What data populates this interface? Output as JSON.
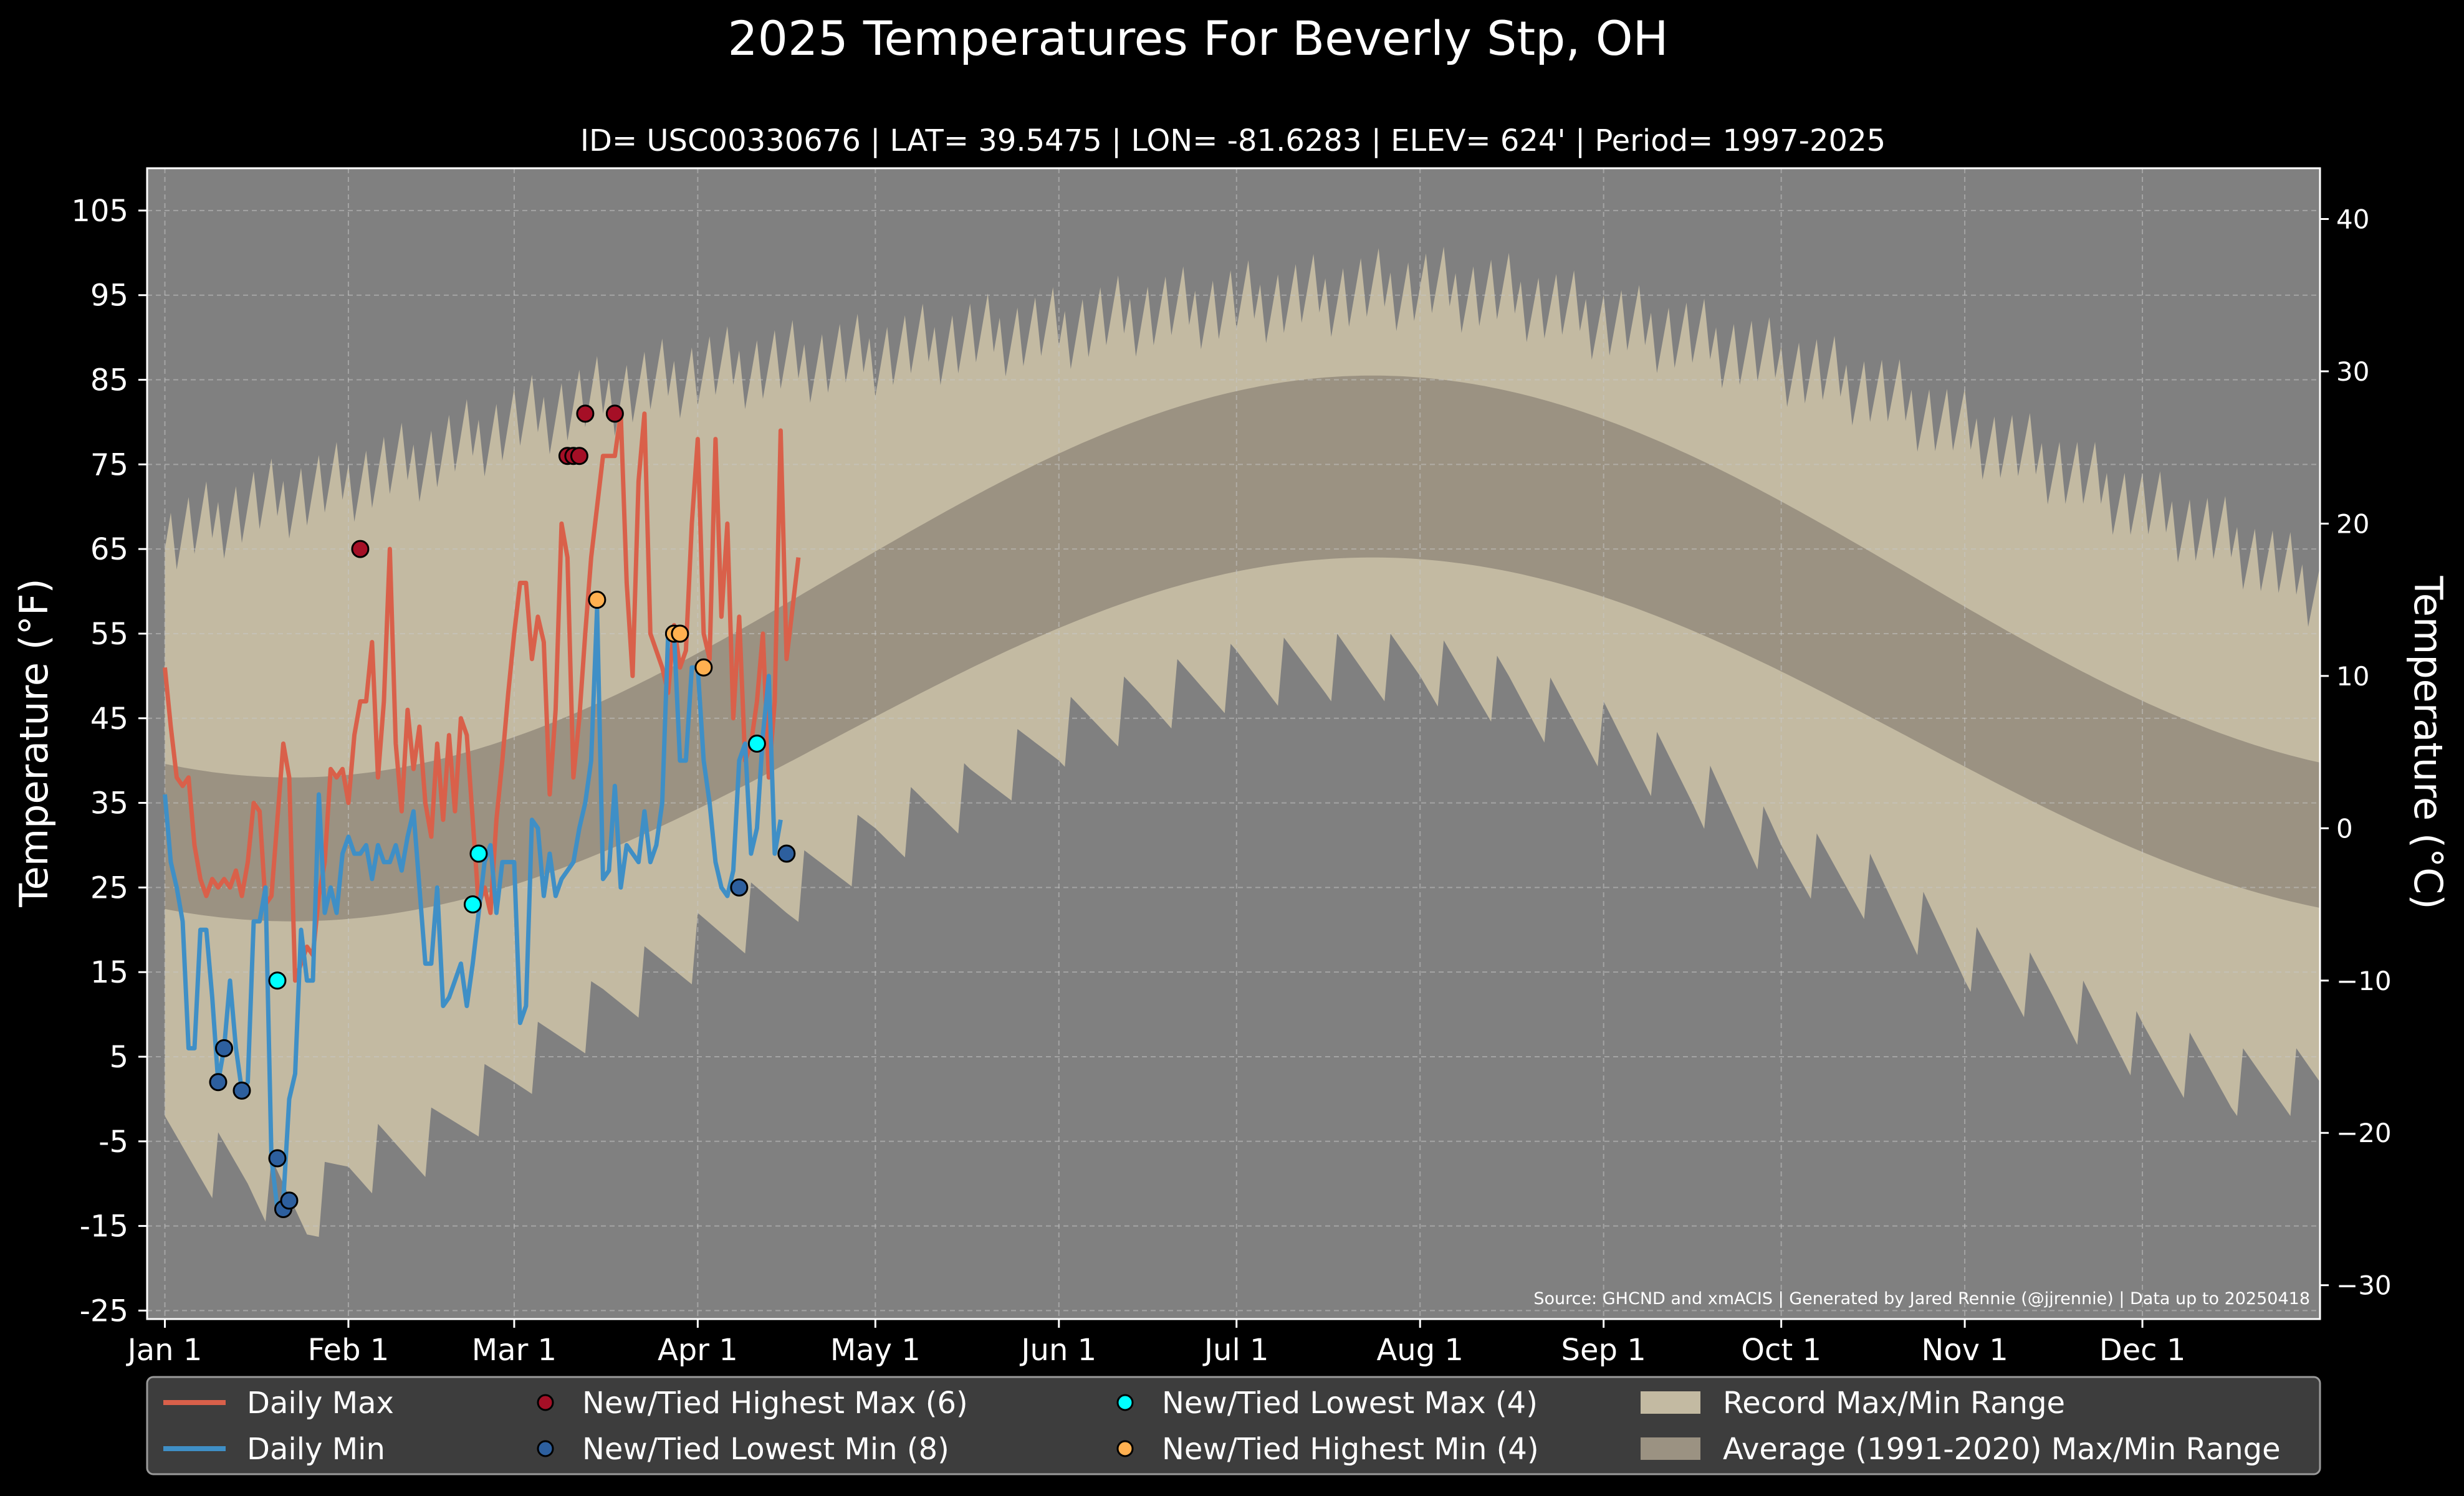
{
  "chart_data": {
    "type": "line",
    "title": "2025 Temperatures For Beverly Stp, OH",
    "subtitle": "ID= USC00330676 | LAT= 39.5475 | LON= -81.6283 | ELEV= 624' | Period= 1997-2025",
    "ylabel_left": "Temperature ($^\\circ$F)",
    "ylabel_left_text": "Temperature (°F)",
    "ylabel_right_text": "Temperature (°C)",
    "source": "Source: GHCND and xmACIS | Generated by Jared Rennie (@jjrennie) | Data up to 20250418",
    "x_axis": {
      "range_day_of_year": [
        -2,
        365
      ],
      "ticks": [
        {
          "day": 1,
          "label": "Jan 1"
        },
        {
          "day": 32,
          "label": "Feb 1"
        },
        {
          "day": 60,
          "label": "Mar 1"
        },
        {
          "day": 91,
          "label": "Apr 1"
        },
        {
          "day": 121,
          "label": "May 1"
        },
        {
          "day": 152,
          "label": "Jun 1"
        },
        {
          "day": 182,
          "label": "Jul 1"
        },
        {
          "day": 213,
          "label": "Aug 1"
        },
        {
          "day": 244,
          "label": "Sep 1"
        },
        {
          "day": 274,
          "label": "Oct 1"
        },
        {
          "day": 305,
          "label": "Nov 1"
        },
        {
          "day": 335,
          "label": "Dec 1"
        }
      ]
    },
    "y_axis_f": {
      "range": [
        -26,
        110
      ],
      "ticks": [
        -25,
        -15,
        -5,
        5,
        15,
        25,
        35,
        45,
        55,
        65,
        75,
        85,
        95,
        105
      ]
    },
    "y_axis_c": {
      "ticks": [
        -30,
        -20,
        -10,
        0,
        10,
        20,
        30,
        40
      ],
      "tick_labels": [
        "−30",
        "−20",
        "−10",
        "0",
        "10",
        "20",
        "30",
        "40"
      ]
    },
    "grid": true,
    "legend_position": "bottom",
    "colors": {
      "daily_max": "#d9604a",
      "daily_min": "#3f8fc6",
      "highest_max": "#a50f26",
      "lowest_min": "#2d5f9e",
      "lowest_max": "#00ffff",
      "highest_min": "#ffb050",
      "record_range": "#c3baa2",
      "average_range": "#9b9282",
      "plot_bg": "#808080"
    },
    "legend": [
      {
        "key": "daily_max",
        "label": "Daily Max",
        "kind": "line"
      },
      {
        "key": "daily_min",
        "label": "Daily Min",
        "kind": "line"
      },
      {
        "key": "highest_max",
        "label": "New/Tied Highest Max (6)",
        "kind": "dot"
      },
      {
        "key": "lowest_min",
        "label": "New/Tied Lowest Min (8)",
        "kind": "dot"
      },
      {
        "key": "lowest_max",
        "label": "New/Tied Lowest Max (4)",
        "kind": "dot"
      },
      {
        "key": "highest_min",
        "label": "New/Tied Highest Min (4)",
        "kind": "dot"
      },
      {
        "key": "record_range",
        "label": "Record Max/Min Range",
        "kind": "patch"
      },
      {
        "key": "average_range",
        "label": "Average (1991-2020) Max/Min Range",
        "kind": "patch"
      }
    ],
    "record_max_monthly_approx": [
      {
        "day": 1,
        "value": 66
      },
      {
        "day": 15,
        "value": 70
      },
      {
        "day": 32,
        "value": 73
      },
      {
        "day": 46,
        "value": 76
      },
      {
        "day": 60,
        "value": 80
      },
      {
        "day": 75,
        "value": 83
      },
      {
        "day": 91,
        "value": 86
      },
      {
        "day": 106,
        "value": 87
      },
      {
        "day": 121,
        "value": 88
      },
      {
        "day": 137,
        "value": 90
      },
      {
        "day": 152,
        "value": 91
      },
      {
        "day": 167,
        "value": 93
      },
      {
        "day": 182,
        "value": 94
      },
      {
        "day": 197,
        "value": 95
      },
      {
        "day": 213,
        "value": 96
      },
      {
        "day": 228,
        "value": 95
      },
      {
        "day": 244,
        "value": 92
      },
      {
        "day": 259,
        "value": 90
      },
      {
        "day": 274,
        "value": 87
      },
      {
        "day": 289,
        "value": 84
      },
      {
        "day": 305,
        "value": 79
      },
      {
        "day": 320,
        "value": 75
      },
      {
        "day": 335,
        "value": 70
      },
      {
        "day": 350,
        "value": 66
      },
      {
        "day": 365,
        "value": 60
      }
    ],
    "record_min_monthly_approx": [
      {
        "day": 1,
        "value": -6
      },
      {
        "day": 15,
        "value": -9
      },
      {
        "day": 25,
        "value": -14
      },
      {
        "day": 32,
        "value": -8
      },
      {
        "day": 46,
        "value": -5
      },
      {
        "day": 60,
        "value": 3
      },
      {
        "day": 75,
        "value": 11
      },
      {
        "day": 91,
        "value": 18
      },
      {
        "day": 106,
        "value": 24
      },
      {
        "day": 121,
        "value": 31
      },
      {
        "day": 137,
        "value": 36
      },
      {
        "day": 152,
        "value": 43
      },
      {
        "day": 167,
        "value": 47
      },
      {
        "day": 182,
        "value": 50
      },
      {
        "day": 197,
        "value": 51
      },
      {
        "day": 213,
        "value": 51
      },
      {
        "day": 228,
        "value": 48
      },
      {
        "day": 244,
        "value": 43
      },
      {
        "day": 259,
        "value": 37
      },
      {
        "day": 274,
        "value": 29
      },
      {
        "day": 289,
        "value": 25
      },
      {
        "day": 305,
        "value": 17
      },
      {
        "day": 320,
        "value": 12
      },
      {
        "day": 335,
        "value": 6
      },
      {
        "day": 350,
        "value": 2
      },
      {
        "day": 365,
        "value": 2
      }
    ],
    "average_max_annual": {
      "min": 38,
      "max": 85.5,
      "peak_day": 205
    },
    "average_min_annual": {
      "min": 21,
      "max": 64,
      "peak_day": 205
    },
    "daily_max": [
      {
        "day": 1,
        "value": 51
      },
      {
        "day": 2,
        "value": 44
      },
      {
        "day": 3,
        "value": 38
      },
      {
        "day": 4,
        "value": 37
      },
      {
        "day": 5,
        "value": 38
      },
      {
        "day": 6,
        "value": 30
      },
      {
        "day": 7,
        "value": 26
      },
      {
        "day": 8,
        "value": 24
      },
      {
        "day": 9,
        "value": 26
      },
      {
        "day": 10,
        "value": 25
      },
      {
        "day": 11,
        "value": 26
      },
      {
        "day": 12,
        "value": 25
      },
      {
        "day": 13,
        "value": 27
      },
      {
        "day": 14,
        "value": 24
      },
      {
        "day": 15,
        "value": 28
      },
      {
        "day": 16,
        "value": 35
      },
      {
        "day": 17,
        "value": 34
      },
      {
        "day": 18,
        "value": 23
      },
      {
        "day": 19,
        "value": 24
      },
      {
        "day": 20,
        "value": 33
      },
      {
        "day": 21,
        "value": 42
      },
      {
        "day": 22,
        "value": 38
      },
      {
        "day": 23,
        "value": 14
      },
      {
        "day": 24,
        "value": 16
      },
      {
        "day": 25,
        "value": 18
      },
      {
        "day": 26,
        "value": 17
      },
      {
        "day": 27,
        "value": 24
      },
      {
        "day": 28,
        "value": 28
      },
      {
        "day": 29,
        "value": 39
      },
      {
        "day": 30,
        "value": 38
      },
      {
        "day": 31,
        "value": 39
      },
      {
        "day": 32,
        "value": 35
      },
      {
        "day": 33,
        "value": 43
      },
      {
        "day": 34,
        "value": 47
      },
      {
        "day": 35,
        "value": 47
      },
      {
        "day": 36,
        "value": 54
      },
      {
        "day": 37,
        "value": 38
      },
      {
        "day": 38,
        "value": 47
      },
      {
        "day": 39,
        "value": 65
      },
      {
        "day": 40,
        "value": 42
      },
      {
        "day": 41,
        "value": 34
      },
      {
        "day": 42,
        "value": 46
      },
      {
        "day": 43,
        "value": 39
      },
      {
        "day": 44,
        "value": 44
      },
      {
        "day": 45,
        "value": 35
      },
      {
        "day": 46,
        "value": 31
      },
      {
        "day": 47,
        "value": 42
      },
      {
        "day": 48,
        "value": 33
      },
      {
        "day": 49,
        "value": 43
      },
      {
        "day": 50,
        "value": 34
      },
      {
        "day": 51,
        "value": 45
      },
      {
        "day": 52,
        "value": 43
      },
      {
        "day": 53,
        "value": 33
      },
      {
        "day": 54,
        "value": 23
      },
      {
        "day": 55,
        "value": 25
      },
      {
        "day": 56,
        "value": 22
      },
      {
        "day": 57,
        "value": 33
      },
      {
        "day": 58,
        "value": 40
      },
      {
        "day": 59,
        "value": 48
      },
      {
        "day": 60,
        "value": 55
      },
      {
        "day": 61,
        "value": 61
      },
      {
        "day": 62,
        "value": 61
      },
      {
        "day": 63,
        "value": 52
      },
      {
        "day": 64,
        "value": 57
      },
      {
        "day": 65,
        "value": 54
      },
      {
        "day": 66,
        "value": 36
      },
      {
        "day": 67,
        "value": 46
      },
      {
        "day": 68,
        "value": 68
      },
      {
        "day": 69,
        "value": 64
      },
      {
        "day": 70,
        "value": 38
      },
      {
        "day": 71,
        "value": 45
      },
      {
        "day": 72,
        "value": 55
      },
      {
        "day": 73,
        "value": 64
      },
      {
        "day": 74,
        "value": 70
      },
      {
        "day": 75,
        "value": 76
      },
      {
        "day": 76,
        "value": 76
      },
      {
        "day": 77,
        "value": 76
      },
      {
        "day": 78,
        "value": 81
      },
      {
        "day": 79,
        "value": 61
      },
      {
        "day": 80,
        "value": 50
      },
      {
        "day": 81,
        "value": 73
      },
      {
        "day": 82,
        "value": 81
      },
      {
        "day": 83,
        "value": 55
      },
      {
        "day": 84,
        "value": 53
      },
      {
        "day": 85,
        "value": 51
      },
      {
        "day": 86,
        "value": 48
      },
      {
        "day": 87,
        "value": 56
      },
      {
        "day": 88,
        "value": 51
      },
      {
        "day": 89,
        "value": 53
      },
      {
        "day": 90,
        "value": 68
      },
      {
        "day": 91,
        "value": 78
      },
      {
        "day": 92,
        "value": 55
      },
      {
        "day": 93,
        "value": 52
      },
      {
        "day": 94,
        "value": 78
      },
      {
        "day": 95,
        "value": 57
      },
      {
        "day": 96,
        "value": 68
      },
      {
        "day": 97,
        "value": 45
      },
      {
        "day": 98,
        "value": 57
      },
      {
        "day": 99,
        "value": 40
      },
      {
        "day": 100,
        "value": 42
      },
      {
        "day": 101,
        "value": 47
      },
      {
        "day": 102,
        "value": 55
      },
      {
        "day": 103,
        "value": 38
      },
      {
        "day": 104,
        "value": 47
      },
      {
        "day": 105,
        "value": 79
      },
      {
        "day": 106,
        "value": 52
      },
      {
        "day": 107,
        "value": 58
      },
      {
        "day": 108,
        "value": 64
      }
    ],
    "daily_min": [
      {
        "day": 1,
        "value": 36
      },
      {
        "day": 2,
        "value": 28
      },
      {
        "day": 3,
        "value": 25
      },
      {
        "day": 4,
        "value": 21
      },
      {
        "day": 5,
        "value": 6
      },
      {
        "day": 6,
        "value": 6
      },
      {
        "day": 7,
        "value": 20
      },
      {
        "day": 8,
        "value": 20
      },
      {
        "day": 9,
        "value": 12
      },
      {
        "day": 10,
        "value": 2
      },
      {
        "day": 11,
        "value": 6
      },
      {
        "day": 12,
        "value": 14
      },
      {
        "day": 13,
        "value": 6
      },
      {
        "day": 14,
        "value": 1
      },
      {
        "day": 15,
        "value": 2
      },
      {
        "day": 16,
        "value": 21
      },
      {
        "day": 17,
        "value": 21
      },
      {
        "day": 18,
        "value": 25
      },
      {
        "day": 19,
        "value": -7
      },
      {
        "day": 20,
        "value": -13
      },
      {
        "day": 21,
        "value": -12
      },
      {
        "day": 22,
        "value": 0
      },
      {
        "day": 23,
        "value": 3
      },
      {
        "day": 24,
        "value": 20
      },
      {
        "day": 25,
        "value": 14
      },
      {
        "day": 26,
        "value": 14
      },
      {
        "day": 27,
        "value": 36
      },
      {
        "day": 28,
        "value": 22
      },
      {
        "day": 29,
        "value": 25
      },
      {
        "day": 30,
        "value": 22
      },
      {
        "day": 31,
        "value": 29
      },
      {
        "day": 32,
        "value": 31
      },
      {
        "day": 33,
        "value": 29
      },
      {
        "day": 34,
        "value": 29
      },
      {
        "day": 35,
        "value": 30
      },
      {
        "day": 36,
        "value": 26
      },
      {
        "day": 37,
        "value": 30
      },
      {
        "day": 38,
        "value": 28
      },
      {
        "day": 39,
        "value": 28
      },
      {
        "day": 40,
        "value": 30
      },
      {
        "day": 41,
        "value": 27
      },
      {
        "day": 42,
        "value": 31
      },
      {
        "day": 43,
        "value": 34
      },
      {
        "day": 44,
        "value": 25
      },
      {
        "day": 45,
        "value": 16
      },
      {
        "day": 46,
        "value": 16
      },
      {
        "day": 47,
        "value": 25
      },
      {
        "day": 48,
        "value": 11
      },
      {
        "day": 49,
        "value": 12
      },
      {
        "day": 50,
        "value": 14
      },
      {
        "day": 51,
        "value": 16
      },
      {
        "day": 52,
        "value": 11
      },
      {
        "day": 53,
        "value": 16
      },
      {
        "day": 54,
        "value": 22
      },
      {
        "day": 55,
        "value": 28
      },
      {
        "day": 56,
        "value": 30
      },
      {
        "day": 57,
        "value": 22
      },
      {
        "day": 58,
        "value": 28
      },
      {
        "day": 59,
        "value": 28
      },
      {
        "day": 60,
        "value": 28
      },
      {
        "day": 61,
        "value": 9
      },
      {
        "day": 62,
        "value": 11
      },
      {
        "day": 63,
        "value": 33
      },
      {
        "day": 64,
        "value": 32
      },
      {
        "day": 65,
        "value": 24
      },
      {
        "day": 66,
        "value": 29
      },
      {
        "day": 67,
        "value": 24
      },
      {
        "day": 68,
        "value": 26
      },
      {
        "day": 69,
        "value": 27
      },
      {
        "day": 70,
        "value": 28
      },
      {
        "day": 71,
        "value": 32
      },
      {
        "day": 72,
        "value": 35
      },
      {
        "day": 73,
        "value": 40
      },
      {
        "day": 74,
        "value": 58
      },
      {
        "day": 75,
        "value": 26
      },
      {
        "day": 76,
        "value": 27
      },
      {
        "day": 77,
        "value": 37
      },
      {
        "day": 78,
        "value": 25
      },
      {
        "day": 79,
        "value": 30
      },
      {
        "day": 80,
        "value": 29
      },
      {
        "day": 81,
        "value": 28
      },
      {
        "day": 82,
        "value": 34
      },
      {
        "day": 83,
        "value": 28
      },
      {
        "day": 84,
        "value": 30
      },
      {
        "day": 85,
        "value": 35
      },
      {
        "day": 86,
        "value": 55
      },
      {
        "day": 87,
        "value": 55
      },
      {
        "day": 88,
        "value": 40
      },
      {
        "day": 89,
        "value": 40
      },
      {
        "day": 90,
        "value": 51
      },
      {
        "day": 91,
        "value": 51
      },
      {
        "day": 92,
        "value": 40
      },
      {
        "day": 93,
        "value": 35
      },
      {
        "day": 94,
        "value": 28
      },
      {
        "day": 95,
        "value": 25
      },
      {
        "day": 96,
        "value": 24
      },
      {
        "day": 97,
        "value": 27
      },
      {
        "day": 98,
        "value": 40
      },
      {
        "day": 99,
        "value": 42
      },
      {
        "day": 100,
        "value": 29
      },
      {
        "day": 101,
        "value": 32
      },
      {
        "day": 102,
        "value": 43
      },
      {
        "day": 103,
        "value": 50
      },
      {
        "day": 104,
        "value": 29
      },
      {
        "day": 105,
        "value": 33
      }
    ],
    "new_tied_highest_max": [
      {
        "day": 34,
        "value": 65
      },
      {
        "day": 69,
        "value": 76
      },
      {
        "day": 70,
        "value": 76
      },
      {
        "day": 71,
        "value": 76
      },
      {
        "day": 72,
        "value": 81
      },
      {
        "day": 77,
        "value": 81
      }
    ],
    "new_tied_lowest_min": [
      {
        "day": 10,
        "value": 2
      },
      {
        "day": 11,
        "value": 6
      },
      {
        "day": 14,
        "value": 1
      },
      {
        "day": 20,
        "value": -7
      },
      {
        "day": 21,
        "value": -13
      },
      {
        "day": 22,
        "value": -12
      },
      {
        "day": 98,
        "value": 25
      },
      {
        "day": 106,
        "value": 29
      }
    ],
    "new_tied_lowest_max": [
      {
        "day": 20,
        "value": 14
      },
      {
        "day": 53,
        "value": 23
      },
      {
        "day": 54,
        "value": 29
      },
      {
        "day": 101,
        "value": 42
      }
    ],
    "new_tied_highest_min": [
      {
        "day": 74,
        "value": 59
      },
      {
        "day": 87,
        "value": 55
      },
      {
        "day": 88,
        "value": 55
      },
      {
        "day": 92,
        "value": 51
      }
    ]
  }
}
